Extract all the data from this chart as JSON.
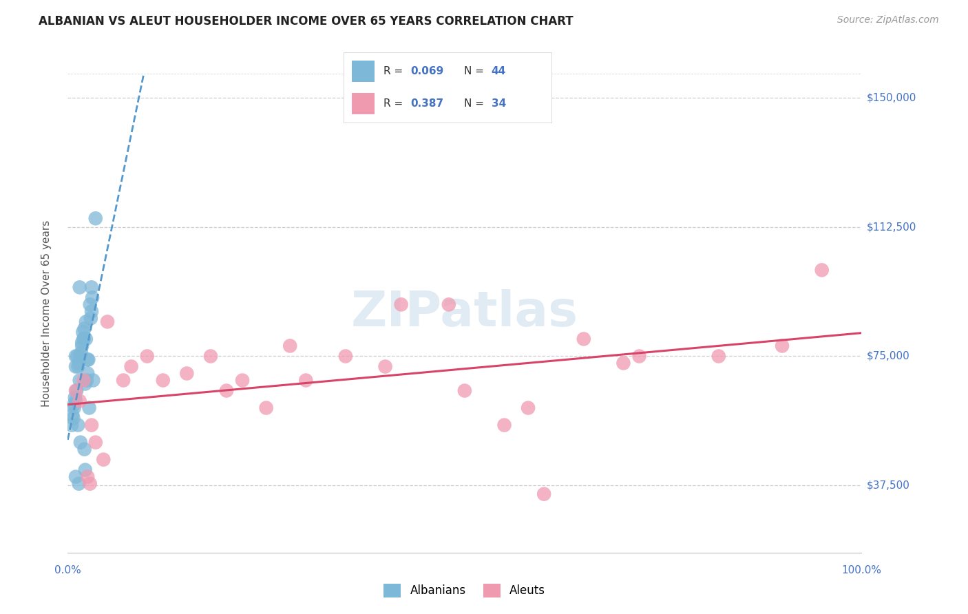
{
  "title": "ALBANIAN VS ALEUT HOUSEHOLDER INCOME OVER 65 YEARS CORRELATION CHART",
  "source": "Source: ZipAtlas.com",
  "ylabel": "Householder Income Over 65 years",
  "watermark": "ZIPatlas",
  "xmin": 0.0,
  "xmax": 100.0,
  "ymin": 18000,
  "ymax": 157000,
  "ytick_vals": [
    37500,
    75000,
    112500,
    150000
  ],
  "ytick_labels": [
    "$37,500",
    "$75,000",
    "$112,500",
    "$150,000"
  ],
  "albanians_color": "#7eb8d8",
  "aleuts_color": "#f09ab0",
  "albanians_label": "Albanians",
  "aleuts_label": "Aleuts",
  "albanians_R": "0.069",
  "albanians_N": "44",
  "aleuts_R": "0.387",
  "aleuts_N": "34",
  "trendline_albanian_color": "#5599cc",
  "trendline_aleut_color": "#d84468",
  "axis_label_color": "#4472c4",
  "background_color": "#ffffff",
  "grid_color": "#c8c8c8",
  "title_color": "#222222",
  "albanians_x": [
    0.5,
    0.7,
    0.8,
    0.9,
    1.0,
    1.0,
    1.0,
    1.1,
    1.2,
    1.3,
    1.4,
    1.5,
    1.5,
    1.6,
    1.7,
    1.8,
    1.8,
    1.9,
    2.0,
    2.0,
    2.1,
    2.2,
    2.3,
    2.3,
    2.4,
    2.5,
    2.5,
    2.6,
    2.7,
    2.8,
    2.9,
    3.0,
    3.0,
    3.1,
    3.2,
    0.6,
    0.8,
    1.3,
    1.6,
    2.1,
    2.2,
    3.5,
    1.0,
    1.4
  ],
  "albanians_y": [
    55000,
    57000,
    60000,
    63000,
    62000,
    72000,
    75000,
    65000,
    75000,
    72000,
    73000,
    68000,
    95000,
    75000,
    76000,
    78000,
    79000,
    82000,
    80000,
    80000,
    83000,
    67000,
    85000,
    80000,
    68000,
    70000,
    74000,
    74000,
    60000,
    90000,
    86000,
    88000,
    95000,
    92000,
    68000,
    58000,
    61000,
    55000,
    50000,
    48000,
    42000,
    115000,
    40000,
    38000
  ],
  "aleuts_x": [
    1.0,
    1.5,
    2.0,
    2.5,
    2.8,
    3.0,
    3.5,
    4.5,
    5.0,
    7.0,
    8.0,
    10.0,
    12.0,
    15.0,
    18.0,
    20.0,
    22.0,
    25.0,
    28.0,
    30.0,
    35.0,
    40.0,
    42.0,
    48.0,
    50.0,
    55.0,
    58.0,
    60.0,
    65.0,
    70.0,
    72.0,
    82.0,
    90.0,
    95.0
  ],
  "aleuts_y": [
    65000,
    62000,
    68000,
    40000,
    38000,
    55000,
    50000,
    45000,
    85000,
    68000,
    72000,
    75000,
    68000,
    70000,
    75000,
    65000,
    68000,
    60000,
    78000,
    68000,
    75000,
    72000,
    90000,
    90000,
    65000,
    55000,
    60000,
    35000,
    80000,
    73000,
    75000,
    75000,
    78000,
    100000
  ]
}
